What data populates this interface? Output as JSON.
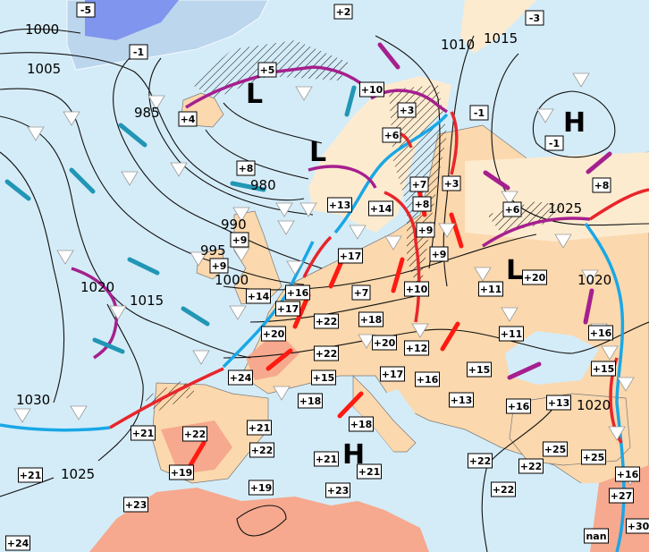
{
  "map": {
    "colors": {
      "sea": "#d4ecf8",
      "land": "#fbd8ad",
      "warm_land": "#f6a98e",
      "ice": "#bcd6ee",
      "cold_front": "#19a7e6",
      "warm_front": "#e8262b",
      "occluded_front": "#a5208e",
      "cold_arrow": "#2196b5"
    },
    "pressure_centers": [
      "L",
      "L",
      "H",
      "L",
      "H"
    ],
    "isobar_labels": [
      "1000",
      "1005",
      "985",
      "980",
      "1010",
      "1015",
      "990",
      "995",
      "1000",
      "1020",
      "1015",
      "1030",
      "1025",
      "1025",
      "1020",
      "1020"
    ],
    "temperatures": [
      "-5",
      "-1",
      "+5",
      "+4",
      "+8",
      "+9",
      "+9",
      "+2",
      "-3",
      "+10",
      "+3",
      "-1",
      "+6",
      "-1",
      "+7",
      "+3",
      "+8",
      "+13",
      "+14",
      "+6",
      "+8",
      "+9",
      "+9",
      "+17",
      "+10",
      "+16",
      "+14",
      "+17",
      "+20",
      "+7",
      "+11",
      "+20",
      "+22",
      "+18",
      "+11",
      "+24",
      "+22",
      "+20",
      "+12",
      "+16",
      "+15",
      "+17",
      "+16",
      "+15",
      "+15",
      "+18",
      "+13",
      "+16",
      "+13",
      "+21",
      "+22",
      "+21",
      "+18",
      "+22",
      "+25",
      "+25",
      "+21",
      "+21",
      "+22",
      "+22",
      "+16",
      "+21",
      "+19",
      "+19",
      "+22",
      "+27",
      "+23",
      "+23",
      "+30",
      "nan",
      "+24"
    ],
    "weather_symbols": [
      "showers-icon",
      "snow-icon",
      "fog-icon",
      "thunderstorm-icon"
    ]
  }
}
